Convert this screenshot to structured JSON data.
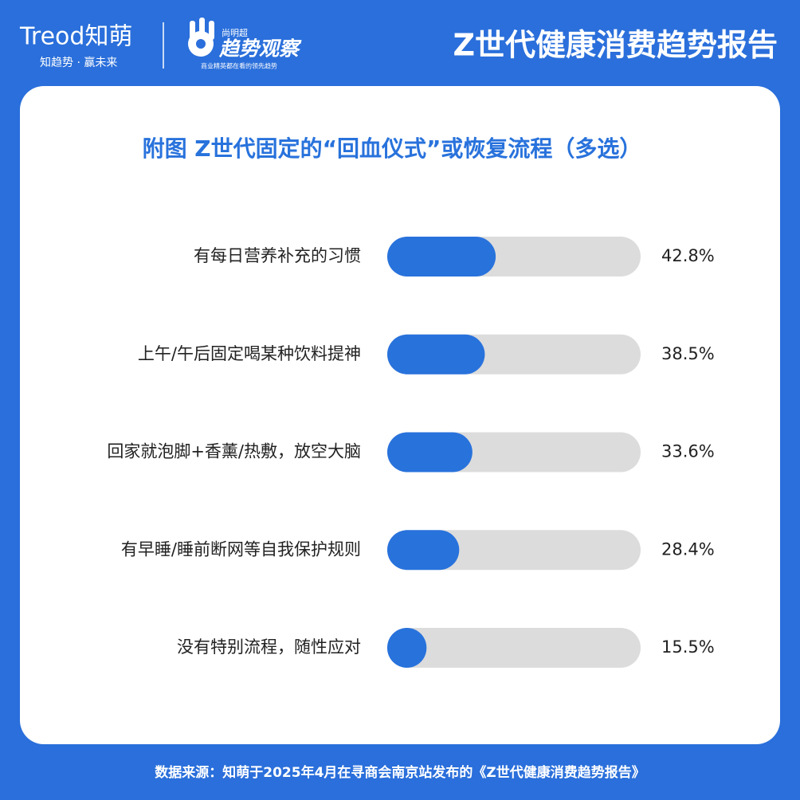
{
  "header": {
    "logo": "Treod知萌",
    "slogan": "知趋势 · 赢未来",
    "brand_name": "尚明超",
    "brand_title": "趋势观察",
    "brand_tagline": "商业精英都在看的领先趋势",
    "report_title": "Z世代健康消费趋势报告"
  },
  "chart_data": {
    "type": "bar",
    "orientation": "horizontal",
    "title": "附图  Z世代固定的“回血仪式”或恢复流程（多选）",
    "categories": [
      "有每日营养补充的习惯",
      "上午/午后固定喝某种饮料提神",
      "回家就泡脚+香薰/热敷，放空大脑",
      "有早睡/睡前断网等自我保护规则",
      "没有特别流程，随性应对"
    ],
    "values": [
      42.8,
      38.5,
      33.6,
      28.4,
      15.5
    ],
    "value_labels": [
      "42.8%",
      "38.5%",
      "33.6%",
      "28.4%",
      "15.5%"
    ],
    "color": "#2872dc",
    "track_color": "#dcdcdc",
    "xlim": [
      0,
      100
    ]
  },
  "footer": {
    "source": "数据来源：知萌于2025年4月在寻商会南京站发布的《Z世代健康消费趋势报告》"
  }
}
